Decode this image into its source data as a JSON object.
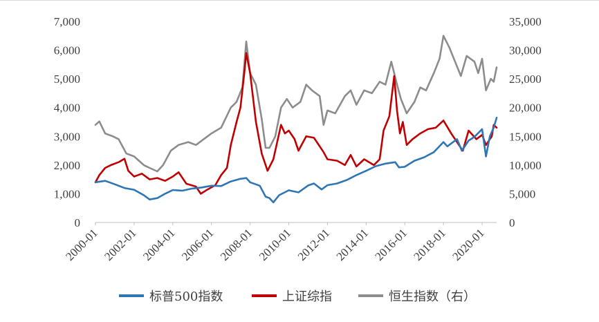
{
  "chart_data": {
    "type": "line",
    "title": "",
    "xlabel": "",
    "ylabel": "",
    "x_ticks": [
      "2000-01",
      "2002-01",
      "2004-01",
      "2006-01",
      "2008-01",
      "2010-01",
      "2012-01",
      "2014-01",
      "2016-01",
      "2018-01",
      "2020-01"
    ],
    "x_range": [
      2000.0,
      2020.75
    ],
    "left_axis": {
      "min": 0,
      "max": 7000,
      "ticks": [
        "0",
        "1,000",
        "2,000",
        "3,000",
        "4,000",
        "5,000",
        "6,000",
        "7,000"
      ]
    },
    "right_axis": {
      "min": 0,
      "max": 35000,
      "ticks": [
        "0",
        "5,000",
        "10,000",
        "15,000",
        "20,000",
        "25,000",
        "30,000",
        "35,000"
      ]
    },
    "grid": false,
    "legend_position": "bottom",
    "series": [
      {
        "name": "标普500指数",
        "axis": "left",
        "color": "#2e75b6",
        "points": [
          [
            2000.0,
            1400
          ],
          [
            2000.5,
            1450
          ],
          [
            2001.0,
            1330
          ],
          [
            2001.5,
            1200
          ],
          [
            2002.0,
            1140
          ],
          [
            2002.5,
            950
          ],
          [
            2002.8,
            800
          ],
          [
            2003.2,
            850
          ],
          [
            2003.6,
            1000
          ],
          [
            2004.0,
            1130
          ],
          [
            2004.5,
            1110
          ],
          [
            2005.0,
            1180
          ],
          [
            2005.5,
            1220
          ],
          [
            2006.0,
            1280
          ],
          [
            2006.5,
            1270
          ],
          [
            2007.0,
            1430
          ],
          [
            2007.5,
            1520
          ],
          [
            2007.8,
            1550
          ],
          [
            2008.0,
            1400
          ],
          [
            2008.5,
            1280
          ],
          [
            2008.8,
            900
          ],
          [
            2009.0,
            850
          ],
          [
            2009.2,
            700
          ],
          [
            2009.5,
            950
          ],
          [
            2010.0,
            1120
          ],
          [
            2010.5,
            1050
          ],
          [
            2011.0,
            1290
          ],
          [
            2011.3,
            1360
          ],
          [
            2011.7,
            1150
          ],
          [
            2012.0,
            1300
          ],
          [
            2012.5,
            1360
          ],
          [
            2013.0,
            1480
          ],
          [
            2013.5,
            1650
          ],
          [
            2014.0,
            1800
          ],
          [
            2014.5,
            1960
          ],
          [
            2015.0,
            2050
          ],
          [
            2015.5,
            2100
          ],
          [
            2015.7,
            1920
          ],
          [
            2016.0,
            1940
          ],
          [
            2016.5,
            2150
          ],
          [
            2017.0,
            2270
          ],
          [
            2017.5,
            2450
          ],
          [
            2018.0,
            2800
          ],
          [
            2018.2,
            2650
          ],
          [
            2018.7,
            2900
          ],
          [
            2018.95,
            2500
          ],
          [
            2019.3,
            2850
          ],
          [
            2019.6,
            2980
          ],
          [
            2020.0,
            3250
          ],
          [
            2020.2,
            2300
          ],
          [
            2020.4,
            3000
          ],
          [
            2020.6,
            3300
          ],
          [
            2020.75,
            3650
          ]
        ]
      },
      {
        "name": "上证综指",
        "axis": "left",
        "color": "#c00000",
        "points": [
          [
            2000.0,
            1400
          ],
          [
            2000.2,
            1650
          ],
          [
            2000.5,
            1900
          ],
          [
            2000.8,
            2000
          ],
          [
            2001.2,
            2100
          ],
          [
            2001.5,
            2220
          ],
          [
            2001.7,
            1800
          ],
          [
            2002.0,
            1600
          ],
          [
            2002.4,
            1700
          ],
          [
            2002.8,
            1500
          ],
          [
            2003.2,
            1550
          ],
          [
            2003.6,
            1450
          ],
          [
            2004.0,
            1600
          ],
          [
            2004.3,
            1750
          ],
          [
            2004.7,
            1350
          ],
          [
            2005.2,
            1250
          ],
          [
            2005.45,
            1000
          ],
          [
            2005.8,
            1150
          ],
          [
            2006.2,
            1300
          ],
          [
            2006.5,
            1650
          ],
          [
            2006.8,
            1900
          ],
          [
            2007.0,
            2700
          ],
          [
            2007.3,
            3500
          ],
          [
            2007.5,
            4000
          ],
          [
            2007.7,
            5200
          ],
          [
            2007.8,
            5900
          ],
          [
            2008.0,
            5200
          ],
          [
            2008.3,
            3500
          ],
          [
            2008.6,
            2400
          ],
          [
            2008.9,
            1800
          ],
          [
            2009.2,
            2200
          ],
          [
            2009.6,
            3400
          ],
          [
            2009.8,
            3100
          ],
          [
            2010.0,
            3200
          ],
          [
            2010.3,
            2900
          ],
          [
            2010.5,
            2500
          ],
          [
            2010.9,
            3000
          ],
          [
            2011.3,
            2950
          ],
          [
            2011.8,
            2450
          ],
          [
            2012.0,
            2200
          ],
          [
            2012.5,
            2150
          ],
          [
            2012.9,
            2000
          ],
          [
            2013.2,
            2350
          ],
          [
            2013.5,
            1950
          ],
          [
            2013.9,
            2200
          ],
          [
            2014.4,
            2000
          ],
          [
            2014.7,
            2200
          ],
          [
            2014.9,
            3200
          ],
          [
            2015.2,
            3700
          ],
          [
            2015.45,
            5100
          ],
          [
            2015.6,
            3900
          ],
          [
            2015.75,
            3100
          ],
          [
            2015.9,
            3500
          ],
          [
            2016.1,
            2700
          ],
          [
            2016.4,
            2900
          ],
          [
            2016.8,
            3100
          ],
          [
            2017.2,
            3250
          ],
          [
            2017.6,
            3300
          ],
          [
            2018.0,
            3550
          ],
          [
            2018.4,
            3100
          ],
          [
            2018.8,
            2700
          ],
          [
            2019.0,
            2500
          ],
          [
            2019.3,
            3200
          ],
          [
            2019.7,
            2900
          ],
          [
            2020.0,
            3050
          ],
          [
            2020.2,
            2700
          ],
          [
            2020.5,
            3000
          ],
          [
            2020.6,
            3400
          ],
          [
            2020.75,
            3300
          ]
        ]
      },
      {
        "name": "恒生指数（右）",
        "axis": "right",
        "color": "#8c8c8c",
        "points": [
          [
            2000.0,
            17000
          ],
          [
            2000.2,
            17600
          ],
          [
            2000.5,
            15500
          ],
          [
            2000.9,
            15000
          ],
          [
            2001.2,
            14500
          ],
          [
            2001.6,
            12000
          ],
          [
            2002.0,
            11500
          ],
          [
            2002.5,
            10000
          ],
          [
            2002.8,
            9500
          ],
          [
            2003.2,
            8900
          ],
          [
            2003.5,
            10000
          ],
          [
            2003.9,
            12500
          ],
          [
            2004.3,
            13500
          ],
          [
            2004.8,
            14000
          ],
          [
            2005.2,
            13500
          ],
          [
            2005.6,
            14500
          ],
          [
            2006.0,
            15500
          ],
          [
            2006.5,
            16500
          ],
          [
            2007.0,
            20000
          ],
          [
            2007.3,
            21000
          ],
          [
            2007.6,
            23500
          ],
          [
            2007.8,
            31500
          ],
          [
            2008.0,
            26000
          ],
          [
            2008.3,
            24000
          ],
          [
            2008.6,
            18000
          ],
          [
            2008.8,
            13000
          ],
          [
            2009.0,
            13000
          ],
          [
            2009.3,
            15000
          ],
          [
            2009.6,
            20000
          ],
          [
            2009.9,
            21500
          ],
          [
            2010.2,
            20000
          ],
          [
            2010.6,
            21000
          ],
          [
            2010.9,
            24000
          ],
          [
            2011.2,
            23000
          ],
          [
            2011.6,
            22000
          ],
          [
            2011.8,
            17000
          ],
          [
            2012.0,
            19500
          ],
          [
            2012.4,
            19000
          ],
          [
            2012.9,
            22000
          ],
          [
            2013.2,
            23000
          ],
          [
            2013.5,
            20500
          ],
          [
            2013.9,
            23000
          ],
          [
            2014.3,
            22500
          ],
          [
            2014.7,
            24500
          ],
          [
            2015.0,
            24000
          ],
          [
            2015.3,
            28000
          ],
          [
            2015.6,
            24000
          ],
          [
            2015.8,
            21500
          ],
          [
            2016.1,
            19000
          ],
          [
            2016.5,
            21000
          ],
          [
            2016.8,
            23500
          ],
          [
            2017.1,
            23000
          ],
          [
            2017.5,
            26000
          ],
          [
            2017.8,
            28500
          ],
          [
            2018.0,
            32500
          ],
          [
            2018.3,
            30500
          ],
          [
            2018.6,
            28000
          ],
          [
            2018.9,
            25500
          ],
          [
            2019.2,
            29000
          ],
          [
            2019.6,
            28000
          ],
          [
            2019.8,
            26000
          ],
          [
            2020.0,
            28500
          ],
          [
            2020.2,
            23000
          ],
          [
            2020.45,
            25000
          ],
          [
            2020.6,
            24500
          ],
          [
            2020.75,
            27000
          ]
        ]
      }
    ]
  },
  "legend": [
    {
      "label": "标普500指数",
      "color": "#2e75b6"
    },
    {
      "label": "上证综指",
      "color": "#c00000"
    },
    {
      "label": "恒生指数（右）",
      "color": "#8c8c8c"
    }
  ]
}
